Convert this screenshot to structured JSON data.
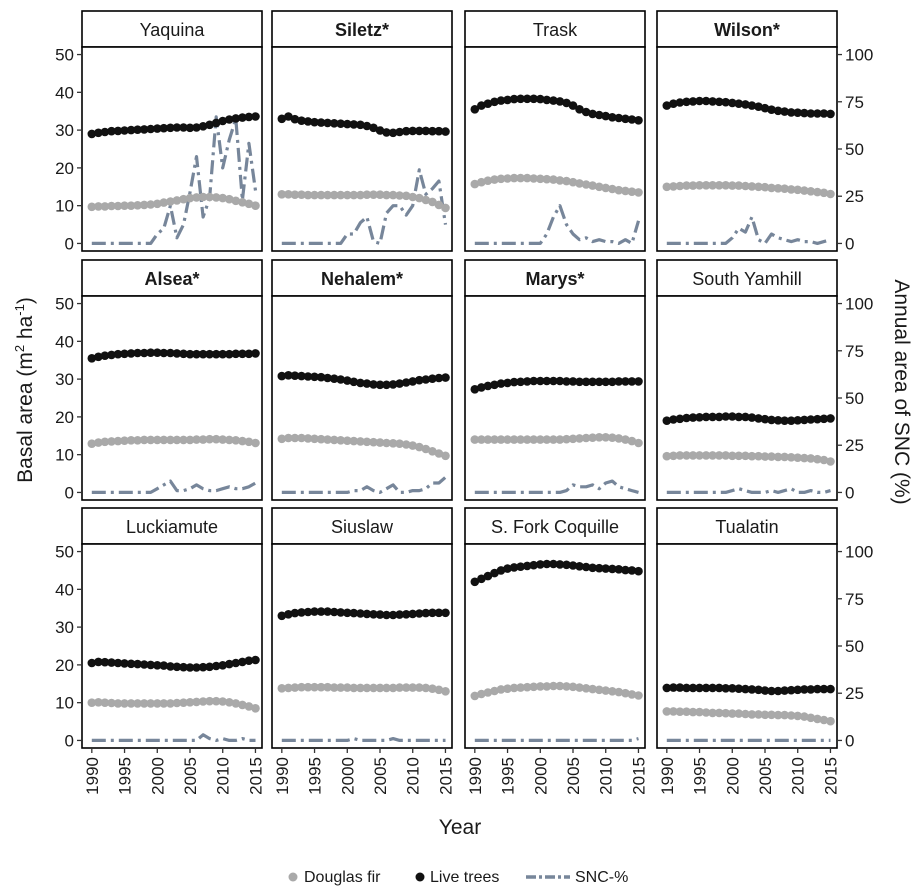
{
  "chart_data": {
    "type": "scatter",
    "layout": "facet-grid-3x4",
    "xlabel": "Year",
    "ylabel_left": "Basal area (m² ha⁻¹)",
    "ylabel_left_parts": [
      "Basal area (m",
      "2",
      " ha",
      "-1",
      ")"
    ],
    "ylabel_right": "Annual area of SNC (%)",
    "x_ticks": [
      1990,
      1995,
      2000,
      2005,
      2010,
      2015
    ],
    "y_left_ticks": [
      0,
      10,
      20,
      30,
      40,
      50
    ],
    "y_right_ticks": [
      0,
      25,
      50,
      75,
      100
    ],
    "xlim": [
      1988.5,
      2016
    ],
    "ylim_left": [
      -2,
      52
    ],
    "ylim_right": [
      -4,
      104
    ],
    "legend": {
      "position": "bottom",
      "items": [
        {
          "name": "Douglas fir",
          "kind": "point",
          "color": "#a9a9a9"
        },
        {
          "name": "Live trees",
          "kind": "point",
          "color": "#111111"
        },
        {
          "name": "SNC-%",
          "kind": "dashdot-line",
          "color": "#77869a"
        }
      ]
    },
    "colors": {
      "douglas_fir": "#a9a9a9",
      "live_trees": "#111111",
      "snc": "#77869a"
    },
    "years": [
      1990,
      1991,
      1992,
      1993,
      1994,
      1995,
      1996,
      1997,
      1998,
      1999,
      2000,
      2001,
      2002,
      2003,
      2004,
      2005,
      2006,
      2007,
      2008,
      2009,
      2010,
      2011,
      2012,
      2013,
      2014,
      2015
    ],
    "panels": [
      {
        "name": "Yaquina",
        "bold": false,
        "live_trees": [
          29.0,
          29.3,
          29.5,
          29.7,
          29.8,
          29.9,
          30.0,
          30.1,
          30.2,
          30.3,
          30.4,
          30.5,
          30.6,
          30.7,
          30.7,
          30.6,
          30.7,
          31.0,
          31.4,
          31.9,
          32.4,
          32.8,
          33.1,
          33.3,
          33.5,
          33.6
        ],
        "douglas_fir": [
          9.7,
          9.8,
          9.8,
          9.9,
          9.9,
          10.0,
          10.0,
          10.1,
          10.2,
          10.3,
          10.5,
          10.8,
          11.1,
          11.4,
          11.7,
          12.0,
          12.2,
          12.3,
          12.3,
          12.2,
          12.0,
          11.7,
          11.3,
          10.9,
          10.5,
          10.0
        ],
        "snc": [
          0,
          0,
          0,
          0,
          0,
          0,
          0,
          0,
          0,
          0,
          5,
          8,
          20,
          3,
          10,
          27,
          46,
          14,
          24,
          67,
          40,
          55,
          66,
          23,
          53,
          28
        ]
      },
      {
        "name": "Siletz*",
        "bold": true,
        "live_trees": [
          33.0,
          33.6,
          32.9,
          32.5,
          32.3,
          32.1,
          32.0,
          31.9,
          31.8,
          31.7,
          31.6,
          31.5,
          31.4,
          31.1,
          30.6,
          29.9,
          29.4,
          29.3,
          29.5,
          29.7,
          29.8,
          29.8,
          29.8,
          29.7,
          29.7,
          29.6
        ],
        "douglas_fir": [
          13.0,
          13.0,
          12.9,
          12.9,
          12.8,
          12.8,
          12.8,
          12.8,
          12.8,
          12.8,
          12.8,
          12.8,
          12.8,
          12.9,
          12.9,
          12.9,
          12.8,
          12.8,
          12.7,
          12.6,
          12.3,
          12.0,
          11.5,
          11.0,
          10.2,
          9.4
        ],
        "snc": [
          0,
          0,
          0,
          0,
          0,
          0,
          0,
          0,
          0,
          0,
          5,
          5,
          11,
          14,
          1,
          0,
          16,
          20,
          20,
          15,
          20,
          39,
          26,
          29,
          33,
          10
        ]
      },
      {
        "name": "Trask",
        "bold": false,
        "live_trees": [
          35.5,
          36.5,
          37.0,
          37.5,
          37.8,
          38.0,
          38.2,
          38.3,
          38.3,
          38.3,
          38.2,
          38.0,
          37.8,
          37.6,
          37.2,
          36.5,
          35.5,
          34.8,
          34.3,
          34.0,
          33.7,
          33.4,
          33.2,
          33.0,
          32.8,
          32.6
        ],
        "douglas_fir": [
          15.7,
          16.2,
          16.6,
          16.9,
          17.1,
          17.2,
          17.3,
          17.3,
          17.3,
          17.2,
          17.1,
          17.0,
          16.9,
          16.7,
          16.5,
          16.2,
          15.9,
          15.6,
          15.3,
          15.0,
          14.7,
          14.4,
          14.1,
          13.9,
          13.7,
          13.5
        ],
        "snc": [
          0,
          0,
          0,
          0,
          0,
          0,
          0,
          0,
          0,
          0,
          0,
          5,
          14,
          20,
          10,
          5,
          2,
          3,
          1,
          2,
          1,
          1,
          0,
          2,
          0,
          12
        ]
      },
      {
        "name": "Wilson*",
        "bold": true,
        "live_trees": [
          36.5,
          37.0,
          37.3,
          37.5,
          37.6,
          37.7,
          37.7,
          37.6,
          37.5,
          37.4,
          37.2,
          37.0,
          36.8,
          36.5,
          36.2,
          35.8,
          35.4,
          35.1,
          34.9,
          34.7,
          34.6,
          34.5,
          34.4,
          34.4,
          34.4,
          34.3
        ],
        "douglas_fir": [
          15.0,
          15.1,
          15.2,
          15.3,
          15.3,
          15.4,
          15.4,
          15.4,
          15.4,
          15.4,
          15.3,
          15.3,
          15.2,
          15.1,
          15.0,
          14.9,
          14.7,
          14.6,
          14.5,
          14.3,
          14.2,
          14.0,
          13.8,
          13.6,
          13.4,
          13.1
        ],
        "snc": [
          0,
          0,
          0,
          0,
          0,
          0,
          0,
          0,
          0,
          0,
          3,
          8,
          6,
          14,
          2,
          0,
          5,
          3,
          2,
          1,
          2,
          1,
          1,
          0,
          1,
          2
        ]
      },
      {
        "name": "Alsea*",
        "bold": true,
        "live_trees": [
          35.5,
          35.9,
          36.2,
          36.4,
          36.6,
          36.7,
          36.8,
          36.9,
          36.9,
          37.0,
          37.0,
          36.9,
          36.9,
          36.8,
          36.7,
          36.6,
          36.6,
          36.6,
          36.6,
          36.6,
          36.6,
          36.6,
          36.7,
          36.7,
          36.7,
          36.8
        ],
        "douglas_fir": [
          12.9,
          13.2,
          13.4,
          13.5,
          13.6,
          13.7,
          13.8,
          13.8,
          13.9,
          13.9,
          13.9,
          13.9,
          13.9,
          13.9,
          13.9,
          13.9,
          14.0,
          14.0,
          14.1,
          14.1,
          14.0,
          13.9,
          13.8,
          13.6,
          13.4,
          13.1
        ],
        "snc": [
          0,
          0,
          0,
          0,
          0,
          0,
          0,
          0,
          0,
          0,
          2,
          4,
          6,
          1,
          1,
          2,
          4,
          2,
          1,
          1,
          2,
          3,
          2,
          2,
          3,
          5
        ]
      },
      {
        "name": "Nehalem*",
        "bold": true,
        "live_trees": [
          30.8,
          31.0,
          30.9,
          30.8,
          30.7,
          30.6,
          30.5,
          30.3,
          30.1,
          29.9,
          29.6,
          29.3,
          29.0,
          28.8,
          28.6,
          28.5,
          28.5,
          28.6,
          28.8,
          29.1,
          29.4,
          29.7,
          29.9,
          30.1,
          30.3,
          30.4
        ],
        "douglas_fir": [
          14.2,
          14.4,
          14.4,
          14.4,
          14.3,
          14.2,
          14.1,
          14.0,
          13.9,
          13.8,
          13.7,
          13.6,
          13.5,
          13.4,
          13.3,
          13.2,
          13.1,
          13.0,
          12.9,
          12.7,
          12.4,
          12.0,
          11.5,
          10.9,
          10.3,
          9.7
        ],
        "snc": [
          0,
          0,
          0,
          0,
          0,
          0,
          0,
          0,
          0,
          0,
          0,
          1,
          1,
          3,
          1,
          0,
          2,
          4,
          0,
          0,
          1,
          1,
          2,
          5,
          5,
          8
        ]
      },
      {
        "name": "Marys*",
        "bold": true,
        "live_trees": [
          27.3,
          27.8,
          28.2,
          28.5,
          28.8,
          29.0,
          29.2,
          29.3,
          29.4,
          29.5,
          29.5,
          29.5,
          29.5,
          29.5,
          29.4,
          29.4,
          29.3,
          29.3,
          29.3,
          29.3,
          29.3,
          29.3,
          29.4,
          29.4,
          29.4,
          29.4
        ],
        "douglas_fir": [
          14.0,
          14.0,
          14.0,
          14.0,
          14.0,
          14.0,
          14.0,
          14.0,
          14.0,
          14.0,
          14.0,
          14.0,
          14.0,
          14.0,
          14.1,
          14.2,
          14.3,
          14.4,
          14.5,
          14.6,
          14.6,
          14.5,
          14.3,
          14.0,
          13.6,
          13.1
        ],
        "snc": [
          0,
          0,
          0,
          0,
          0,
          0,
          0,
          0,
          0,
          0,
          0,
          0,
          0,
          0,
          1,
          4,
          3,
          3,
          4,
          2,
          5,
          6,
          3,
          2,
          1,
          0
        ]
      },
      {
        "name": "South Yamhill",
        "bold": false,
        "live_trees": [
          19.0,
          19.3,
          19.5,
          19.7,
          19.8,
          19.9,
          20.0,
          20.0,
          20.0,
          20.1,
          20.1,
          20.0,
          20.0,
          19.8,
          19.6,
          19.4,
          19.2,
          19.1,
          19.0,
          19.0,
          19.1,
          19.2,
          19.3,
          19.4,
          19.5,
          19.6
        ],
        "douglas_fir": [
          9.6,
          9.7,
          9.8,
          9.8,
          9.8,
          9.8,
          9.8,
          9.8,
          9.8,
          9.8,
          9.7,
          9.7,
          9.7,
          9.6,
          9.6,
          9.5,
          9.5,
          9.4,
          9.4,
          9.3,
          9.2,
          9.1,
          9.0,
          8.8,
          8.6,
          8.2
        ],
        "snc": [
          0,
          0,
          0,
          0,
          0,
          0,
          0,
          0,
          0,
          0,
          1,
          2,
          1,
          0,
          0,
          0,
          1,
          0,
          1,
          2,
          0,
          0,
          1,
          0,
          0,
          1
        ]
      },
      {
        "name": "Luckiamute",
        "bold": false,
        "live_trees": [
          20.5,
          20.8,
          20.7,
          20.6,
          20.5,
          20.4,
          20.3,
          20.2,
          20.1,
          20.0,
          19.9,
          19.8,
          19.6,
          19.5,
          19.4,
          19.3,
          19.3,
          19.4,
          19.5,
          19.7,
          19.9,
          20.2,
          20.5,
          20.8,
          21.1,
          21.3
        ],
        "douglas_fir": [
          10.0,
          10.1,
          10.0,
          9.9,
          9.8,
          9.8,
          9.8,
          9.8,
          9.8,
          9.8,
          9.8,
          9.8,
          9.8,
          9.9,
          10.0,
          10.1,
          10.2,
          10.3,
          10.4,
          10.4,
          10.3,
          10.1,
          9.8,
          9.4,
          9.0,
          8.5
        ],
        "snc": [
          0,
          0,
          0,
          0,
          0,
          0,
          0,
          0,
          0,
          0,
          0,
          0,
          0,
          0,
          0,
          0,
          0,
          3,
          1,
          0,
          1,
          0,
          0,
          1,
          0,
          0
        ]
      },
      {
        "name": "Siuslaw",
        "bold": false,
        "live_trees": [
          33.0,
          33.4,
          33.7,
          33.9,
          34.0,
          34.1,
          34.1,
          34.1,
          34.0,
          33.9,
          33.8,
          33.7,
          33.6,
          33.5,
          33.4,
          33.3,
          33.2,
          33.2,
          33.3,
          33.4,
          33.5,
          33.6,
          33.7,
          33.8,
          33.8,
          33.8
        ],
        "douglas_fir": [
          13.8,
          13.9,
          14.0,
          14.1,
          14.1,
          14.1,
          14.1,
          14.1,
          14.0,
          14.0,
          14.0,
          13.9,
          13.9,
          13.9,
          13.9,
          13.9,
          13.9,
          13.9,
          14.0,
          14.0,
          14.0,
          14.0,
          13.9,
          13.7,
          13.4,
          13.0
        ],
        "snc": [
          0,
          0,
          0,
          0,
          0,
          0,
          0,
          0,
          0,
          0,
          0,
          1,
          0,
          0,
          0,
          0,
          0,
          1,
          0,
          0,
          0,
          0,
          0,
          0,
          0,
          0
        ]
      },
      {
        "name": "S. Fork Coquille",
        "bold": false,
        "live_trees": [
          42.0,
          42.8,
          43.5,
          44.3,
          45.0,
          45.5,
          45.8,
          46.0,
          46.2,
          46.4,
          46.6,
          46.7,
          46.7,
          46.6,
          46.5,
          46.3,
          46.1,
          45.9,
          45.7,
          45.6,
          45.5,
          45.4,
          45.3,
          45.1,
          45.0,
          44.8
        ],
        "douglas_fir": [
          11.8,
          12.3,
          12.7,
          13.1,
          13.5,
          13.7,
          13.9,
          14.0,
          14.1,
          14.2,
          14.3,
          14.3,
          14.4,
          14.4,
          14.3,
          14.2,
          14.0,
          13.8,
          13.6,
          13.4,
          13.2,
          13.0,
          12.8,
          12.5,
          12.2,
          11.9
        ],
        "snc": [
          0,
          0,
          0,
          0,
          0,
          0,
          0,
          0,
          0,
          0,
          0,
          0,
          0,
          0,
          0,
          0,
          0,
          0,
          0,
          0,
          0,
          0,
          0,
          0,
          0,
          1
        ]
      },
      {
        "name": "Tualatin",
        "bold": false,
        "live_trees": [
          13.9,
          14.0,
          14.0,
          13.9,
          13.9,
          13.9,
          13.9,
          13.9,
          13.9,
          13.8,
          13.8,
          13.7,
          13.6,
          13.5,
          13.4,
          13.2,
          13.1,
          13.1,
          13.2,
          13.3,
          13.4,
          13.5,
          13.5,
          13.6,
          13.6,
          13.6
        ],
        "douglas_fir": [
          7.7,
          7.7,
          7.6,
          7.6,
          7.5,
          7.5,
          7.4,
          7.3,
          7.3,
          7.2,
          7.1,
          7.1,
          7.0,
          6.9,
          6.9,
          6.8,
          6.8,
          6.7,
          6.7,
          6.6,
          6.5,
          6.3,
          6.0,
          5.7,
          5.4,
          5.1
        ],
        "snc": [
          0,
          0,
          0,
          0,
          0,
          0,
          0,
          0,
          0,
          0,
          0,
          0,
          0,
          0,
          0,
          0,
          0,
          0,
          0,
          0,
          0,
          0,
          0,
          0,
          0,
          0
        ]
      }
    ]
  }
}
